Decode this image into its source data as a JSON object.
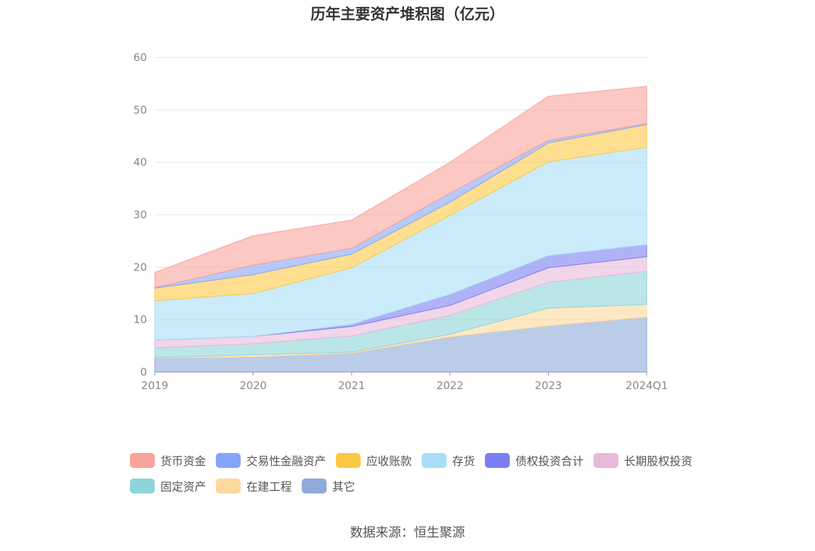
{
  "title": "历年主要资产堆积图（亿元）",
  "source": "数据来源：恒生聚源",
  "chart_data": {
    "type": "area",
    "stacked": true,
    "categories": [
      "2019",
      "2020",
      "2021",
      "2022",
      "2023",
      "2024Q1"
    ],
    "ylim": [
      0,
      60
    ],
    "yticks": [
      0,
      10,
      20,
      30,
      40,
      50,
      60
    ],
    "grid": true,
    "legend_position": "bottom",
    "series": [
      {
        "name": "其它",
        "color": "#8eaad9",
        "values": [
          2.7,
          2.9,
          3.6,
          6.7,
          8.8,
          10.5
        ]
      },
      {
        "name": "在建工程",
        "color": "#fdd99c",
        "values": [
          0.1,
          0.4,
          0.2,
          0.5,
          3.4,
          2.4
        ]
      },
      {
        "name": "固定资产",
        "color": "#8dd5d7",
        "values": [
          1.8,
          2.1,
          3.1,
          3.6,
          4.9,
          6.3
        ]
      },
      {
        "name": "长期股权投资",
        "color": "#e8b9db",
        "values": [
          1.5,
          1.4,
          1.8,
          1.9,
          2.8,
          2.8
        ]
      },
      {
        "name": "债权投资合计",
        "color": "#7b7ef2",
        "values": [
          0.0,
          0.0,
          0.4,
          2.1,
          2.3,
          2.3
        ]
      },
      {
        "name": "存货",
        "color": "#a8def7",
        "values": [
          7.5,
          8.2,
          10.8,
          15.1,
          17.9,
          18.6
        ]
      },
      {
        "name": "应收账款",
        "color": "#fdc945",
        "values": [
          2.4,
          3.6,
          2.6,
          2.5,
          3.6,
          4.3
        ]
      },
      {
        "name": "交易性金融资产",
        "color": "#87a5f8",
        "values": [
          0.1,
          1.8,
          1.1,
          1.7,
          0.5,
          0.2
        ]
      },
      {
        "name": "货币资金",
        "color": "#f8a39b",
        "values": [
          2.9,
          5.6,
          5.4,
          5.9,
          8.4,
          7.1
        ]
      }
    ]
  },
  "legend": {
    "row1": [
      "货币资金",
      "交易性金融资产",
      "应收账款",
      "存货",
      "债权投资合计",
      "长期股权投资"
    ],
    "row2": [
      "固定资产",
      "在建工程",
      "其它"
    ]
  }
}
